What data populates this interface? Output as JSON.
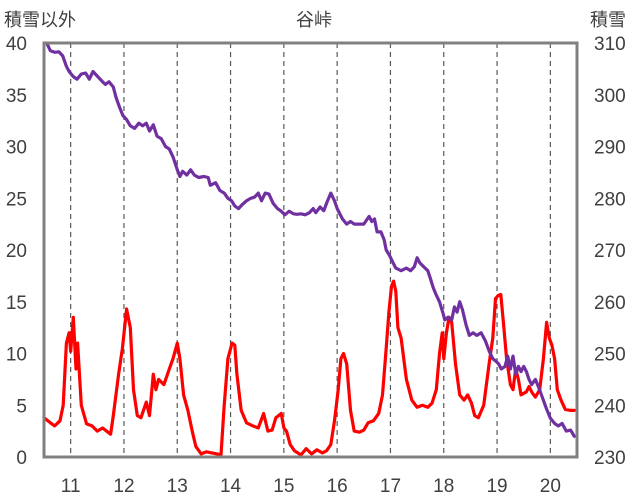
{
  "chart_data": {
    "type": "line",
    "title": "谷峠",
    "ylabel_left": "積雪以外",
    "ylabel_right": "積雪",
    "x_tick_labels": [
      "11",
      "12",
      "13",
      "14",
      "15",
      "16",
      "17",
      "18",
      "19",
      "20"
    ],
    "xlim": [
      10.5,
      20.5
    ],
    "ylim_left": [
      0,
      40
    ],
    "ylim_right": [
      230,
      310
    ],
    "yticks_left": [
      "0",
      "5",
      "10",
      "15",
      "20",
      "25",
      "30",
      "35",
      "40"
    ],
    "yticks_right": [
      "230",
      "240",
      "250",
      "260",
      "270",
      "280",
      "290",
      "300",
      "310"
    ],
    "grid": "vertical dashed at each day",
    "series": [
      {
        "name": "",
        "axis": "left",
        "color": "#ff0000",
        "points": [
          [
            10.5,
            3.8
          ],
          [
            10.62,
            3.3
          ],
          [
            10.7,
            3.0
          ],
          [
            10.8,
            3.5
          ],
          [
            10.86,
            5.0
          ],
          [
            10.92,
            11.0
          ],
          [
            10.97,
            12.0
          ],
          [
            11.0,
            10.2
          ],
          [
            11.05,
            13.5
          ],
          [
            11.1,
            8.5
          ],
          [
            11.13,
            11.0
          ],
          [
            11.2,
            5.0
          ],
          [
            11.3,
            3.2
          ],
          [
            11.4,
            3.0
          ],
          [
            11.5,
            2.5
          ],
          [
            11.6,
            2.8
          ],
          [
            11.75,
            2.2
          ],
          [
            11.8,
            4.0
          ],
          [
            11.9,
            8.0
          ],
          [
            11.97,
            10.5
          ],
          [
            12.05,
            14.3
          ],
          [
            12.12,
            12.5
          ],
          [
            12.18,
            6.5
          ],
          [
            12.25,
            4.0
          ],
          [
            12.32,
            3.8
          ],
          [
            12.42,
            5.3
          ],
          [
            12.48,
            4.0
          ],
          [
            12.55,
            8.0
          ],
          [
            12.6,
            6.5
          ],
          [
            12.65,
            7.5
          ],
          [
            12.75,
            7.0
          ],
          [
            12.85,
            8.5
          ],
          [
            12.92,
            9.5
          ],
          [
            13.0,
            11.0
          ],
          [
            13.05,
            9.5
          ],
          [
            13.12,
            6.0
          ],
          [
            13.2,
            4.5
          ],
          [
            13.28,
            2.5
          ],
          [
            13.35,
            1.0
          ],
          [
            13.45,
            0.3
          ],
          [
            13.55,
            0.5
          ],
          [
            13.65,
            0.4
          ],
          [
            13.75,
            0.3
          ],
          [
            13.82,
            0.2
          ],
          [
            13.88,
            5.0
          ],
          [
            13.95,
            9.5
          ],
          [
            14.03,
            11.0
          ],
          [
            14.08,
            10.8
          ],
          [
            14.12,
            8.0
          ],
          [
            14.2,
            4.5
          ],
          [
            14.3,
            3.3
          ],
          [
            14.42,
            3.0
          ],
          [
            14.52,
            2.8
          ],
          [
            14.62,
            4.2
          ],
          [
            14.7,
            2.5
          ],
          [
            14.78,
            2.6
          ],
          [
            14.85,
            3.8
          ],
          [
            14.95,
            4.2
          ],
          [
            15.0,
            2.8
          ],
          [
            15.05,
            2.5
          ],
          [
            15.12,
            1.2
          ],
          [
            15.2,
            0.6
          ],
          [
            15.32,
            0.2
          ],
          [
            15.42,
            0.8
          ],
          [
            15.52,
            0.3
          ],
          [
            15.62,
            0.7
          ],
          [
            15.72,
            0.4
          ],
          [
            15.8,
            0.6
          ],
          [
            15.88,
            1.2
          ],
          [
            15.95,
            3.5
          ],
          [
            16.02,
            6.5
          ],
          [
            16.07,
            9.5
          ],
          [
            16.12,
            10.0
          ],
          [
            16.18,
            9.0
          ],
          [
            16.25,
            4.5
          ],
          [
            16.32,
            2.5
          ],
          [
            16.42,
            2.4
          ],
          [
            16.5,
            2.6
          ],
          [
            16.58,
            3.3
          ],
          [
            16.68,
            3.5
          ],
          [
            16.78,
            4.2
          ],
          [
            16.85,
            6.0
          ],
          [
            16.92,
            10.5
          ],
          [
            16.97,
            14.0
          ],
          [
            17.02,
            16.5
          ],
          [
            17.06,
            17.0
          ],
          [
            17.1,
            16.0
          ],
          [
            17.14,
            12.5
          ],
          [
            17.2,
            11.5
          ],
          [
            17.3,
            7.5
          ],
          [
            17.4,
            5.5
          ],
          [
            17.5,
            4.8
          ],
          [
            17.6,
            5.0
          ],
          [
            17.7,
            4.8
          ],
          [
            17.78,
            5.2
          ],
          [
            17.86,
            6.5
          ],
          [
            17.92,
            10.0
          ],
          [
            17.97,
            12.0
          ],
          [
            18.0,
            9.5
          ],
          [
            18.05,
            12.0
          ],
          [
            18.1,
            13.5
          ],
          [
            18.15,
            13.0
          ],
          [
            18.22,
            9.0
          ],
          [
            18.3,
            6.0
          ],
          [
            18.38,
            5.5
          ],
          [
            18.45,
            6.0
          ],
          [
            18.52,
            5.2
          ],
          [
            18.58,
            4.0
          ],
          [
            18.65,
            3.8
          ],
          [
            18.75,
            5.0
          ],
          [
            18.85,
            9.0
          ],
          [
            18.92,
            11.5
          ],
          [
            18.97,
            15.3
          ],
          [
            19.02,
            15.6
          ],
          [
            19.07,
            15.7
          ],
          [
            19.12,
            13.0
          ],
          [
            19.18,
            9.5
          ],
          [
            19.25,
            7.0
          ],
          [
            19.3,
            6.5
          ],
          [
            19.35,
            8.5
          ],
          [
            19.4,
            7.5
          ],
          [
            19.45,
            6.0
          ],
          [
            19.55,
            6.3
          ],
          [
            19.6,
            6.8
          ],
          [
            19.66,
            6.2
          ],
          [
            19.72,
            5.8
          ],
          [
            19.8,
            6.5
          ],
          [
            19.87,
            9.5
          ],
          [
            19.93,
            13.0
          ],
          [
            19.98,
            11.5
          ],
          [
            20.03,
            10.8
          ],
          [
            20.08,
            9.5
          ],
          [
            20.13,
            6.5
          ],
          [
            20.2,
            5.5
          ],
          [
            20.28,
            4.6
          ],
          [
            20.38,
            4.5
          ],
          [
            20.45,
            4.5
          ]
        ]
      },
      {
        "name": "",
        "axis": "right",
        "color": "#7030a0",
        "points": [
          [
            10.55,
            310.0
          ],
          [
            10.62,
            308.5
          ],
          [
            10.7,
            308.2
          ],
          [
            10.78,
            308.3
          ],
          [
            10.85,
            307.5
          ],
          [
            10.92,
            305.5
          ],
          [
            10.97,
            304.5
          ],
          [
            11.05,
            303.5
          ],
          [
            11.12,
            303.0
          ],
          [
            11.2,
            304.0
          ],
          [
            11.28,
            304.2
          ],
          [
            11.35,
            303.0
          ],
          [
            11.42,
            304.5
          ],
          [
            11.5,
            303.6
          ],
          [
            11.6,
            302.5
          ],
          [
            11.65,
            302.0
          ],
          [
            11.72,
            302.5
          ],
          [
            11.8,
            301.5
          ],
          [
            11.85,
            299.5
          ],
          [
            11.92,
            297.5
          ],
          [
            11.98,
            296.0
          ],
          [
            12.05,
            295.2
          ],
          [
            12.12,
            294.0
          ],
          [
            12.2,
            293.5
          ],
          [
            12.28,
            294.5
          ],
          [
            12.35,
            294.0
          ],
          [
            12.42,
            294.5
          ],
          [
            12.48,
            293.0
          ],
          [
            12.55,
            294.2
          ],
          [
            12.62,
            292.0
          ],
          [
            12.7,
            291.5
          ],
          [
            12.78,
            290.0
          ],
          [
            12.85,
            289.5
          ],
          [
            12.92,
            288.0
          ],
          [
            13.0,
            285.5
          ],
          [
            13.05,
            284.2
          ],
          [
            13.1,
            285.2
          ],
          [
            13.18,
            284.5
          ],
          [
            13.25,
            285.5
          ],
          [
            13.32,
            284.5
          ],
          [
            13.4,
            284.0
          ],
          [
            13.5,
            284.2
          ],
          [
            13.58,
            284.0
          ],
          [
            13.62,
            282.5
          ],
          [
            13.72,
            283.0
          ],
          [
            13.8,
            281.5
          ],
          [
            13.88,
            281.0
          ],
          [
            13.95,
            280.0
          ],
          [
            14.02,
            279.5
          ],
          [
            14.08,
            278.5
          ],
          [
            14.15,
            278.0
          ],
          [
            14.22,
            278.8
          ],
          [
            14.3,
            279.5
          ],
          [
            14.38,
            280.0
          ],
          [
            14.45,
            280.2
          ],
          [
            14.52,
            281.0
          ],
          [
            14.58,
            279.5
          ],
          [
            14.65,
            281.0
          ],
          [
            14.72,
            280.8
          ],
          [
            14.8,
            279.0
          ],
          [
            14.88,
            278.0
          ],
          [
            14.95,
            277.5
          ],
          [
            15.02,
            276.8
          ],
          [
            15.1,
            277.5
          ],
          [
            15.18,
            277.0
          ],
          [
            15.25,
            276.9
          ],
          [
            15.32,
            277.0
          ],
          [
            15.4,
            276.8
          ],
          [
            15.48,
            277.2
          ],
          [
            15.55,
            278.0
          ],
          [
            15.6,
            277.2
          ],
          [
            15.68,
            278.3
          ],
          [
            15.75,
            277.6
          ],
          [
            15.8,
            279.0
          ],
          [
            15.88,
            281.0
          ],
          [
            15.95,
            279.5
          ],
          [
            16.0,
            278.0
          ],
          [
            16.05,
            277.0
          ],
          [
            16.1,
            276.0
          ],
          [
            16.18,
            275.0
          ],
          [
            16.25,
            275.5
          ],
          [
            16.32,
            275.0
          ],
          [
            16.4,
            275.0
          ],
          [
            16.5,
            275.0
          ],
          [
            16.6,
            276.5
          ],
          [
            16.65,
            275.5
          ],
          [
            16.7,
            276.0
          ],
          [
            16.75,
            273.5
          ],
          [
            16.82,
            273.5
          ],
          [
            16.88,
            272.0
          ],
          [
            16.92,
            270.0
          ],
          [
            16.98,
            269.0
          ],
          [
            17.05,
            267.5
          ],
          [
            17.1,
            266.5
          ],
          [
            17.2,
            266.0
          ],
          [
            17.3,
            266.5
          ],
          [
            17.38,
            266.0
          ],
          [
            17.45,
            266.8
          ],
          [
            17.5,
            268.5
          ],
          [
            17.55,
            267.5
          ],
          [
            17.6,
            267.0
          ],
          [
            17.65,
            266.5
          ],
          [
            17.7,
            266.0
          ],
          [
            17.75,
            264.5
          ],
          [
            17.8,
            262.8
          ],
          [
            17.85,
            261.5
          ],
          [
            17.92,
            260.0
          ],
          [
            17.98,
            258.0
          ],
          [
            18.02,
            256.5
          ],
          [
            18.08,
            257.0
          ],
          [
            18.15,
            256.5
          ],
          [
            18.2,
            259.0
          ],
          [
            18.25,
            258.0
          ],
          [
            18.3,
            260.0
          ],
          [
            18.35,
            258.5
          ],
          [
            18.42,
            255.5
          ],
          [
            18.48,
            253.5
          ],
          [
            18.55,
            254.0
          ],
          [
            18.62,
            253.5
          ],
          [
            18.7,
            254.0
          ],
          [
            18.78,
            252.5
          ],
          [
            18.85,
            250.5
          ],
          [
            18.92,
            249.0
          ],
          [
            18.98,
            248.5
          ],
          [
            19.03,
            248.0
          ],
          [
            19.08,
            247.0
          ],
          [
            19.15,
            247.5
          ],
          [
            19.2,
            249.5
          ],
          [
            19.25,
            247.0
          ],
          [
            19.3,
            249.5
          ],
          [
            19.35,
            246.0
          ],
          [
            19.4,
            247.5
          ],
          [
            19.45,
            246.5
          ],
          [
            19.5,
            247.5
          ],
          [
            19.55,
            246.5
          ],
          [
            19.6,
            245.0
          ],
          [
            19.65,
            244.0
          ],
          [
            19.72,
            245.0
          ],
          [
            19.78,
            243.5
          ],
          [
            19.85,
            241.5
          ],
          [
            19.92,
            239.5
          ],
          [
            20.0,
            237.5
          ],
          [
            20.08,
            236.5
          ],
          [
            20.15,
            236.0
          ],
          [
            20.22,
            236.5
          ],
          [
            20.3,
            235.0
          ],
          [
            20.38,
            235.2
          ],
          [
            20.45,
            234.0
          ]
        ]
      }
    ]
  }
}
